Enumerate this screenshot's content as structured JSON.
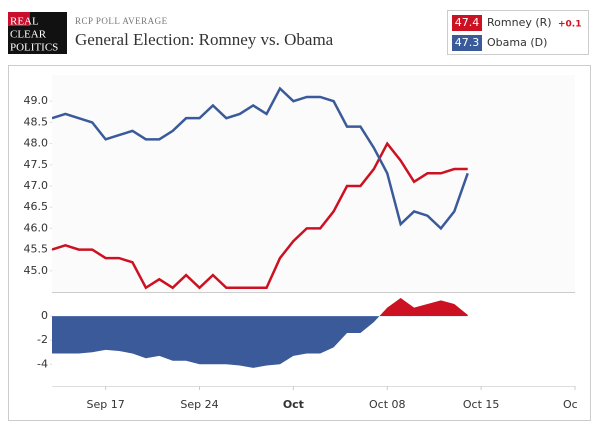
{
  "header": {
    "logo": [
      "REAL",
      "CLEAR",
      "POLITICS"
    ],
    "subtitle": "RCP POLL AVERAGE",
    "title": "General Election: Romney vs. Obama"
  },
  "chart_data": [
    {
      "type": "line",
      "x": [
        13,
        14,
        15,
        16,
        17,
        18,
        19,
        20,
        21,
        22,
        23,
        24,
        25,
        26,
        27,
        28,
        29,
        30,
        31,
        32,
        33,
        34,
        35,
        36,
        37,
        38,
        39,
        40,
        41,
        42,
        43,
        44
      ],
      "series": [
        {
          "name": "Romney (R)",
          "color": "#cc1122",
          "legend_value": "47.4",
          "change": "+0.1",
          "values": [
            45.5,
            45.6,
            45.5,
            45.5,
            45.3,
            45.3,
            45.2,
            44.6,
            44.8,
            44.6,
            44.9,
            44.6,
            44.9,
            44.6,
            44.6,
            44.6,
            44.6,
            45.3,
            45.7,
            46.0,
            46.0,
            46.4,
            47.0,
            47.0,
            47.4,
            48.0,
            47.6,
            47.1,
            47.3,
            47.3,
            47.4,
            47.4
          ]
        },
        {
          "name": "Obama (D)",
          "color": "#3a5a9a",
          "legend_value": "47.3",
          "values": [
            48.6,
            48.7,
            48.6,
            48.5,
            48.1,
            48.2,
            48.3,
            48.1,
            48.1,
            48.3,
            48.6,
            48.6,
            48.9,
            48.6,
            48.7,
            48.9,
            48.7,
            49.3,
            49.0,
            49.1,
            49.1,
            49.0,
            48.4,
            48.4,
            47.9,
            47.3,
            46.1,
            46.4,
            46.3,
            46.0,
            46.4,
            47.3
          ]
        }
      ],
      "xlim": [
        13,
        52
      ],
      "ylim": [
        44.5,
        49.5
      ],
      "yticks": [
        {
          "value": 45,
          "label": "45.0"
        },
        {
          "value": 45.5,
          "label": "45.5"
        },
        {
          "value": 46,
          "label": "46.0"
        },
        {
          "value": 46.5,
          "label": "46.5"
        },
        {
          "value": 47,
          "label": "47.0"
        },
        {
          "value": 47.5,
          "label": "47.5"
        },
        {
          "value": 48,
          "label": "48.0"
        },
        {
          "value": 48.5,
          "label": "48.5"
        },
        {
          "value": 49,
          "label": "49.0"
        }
      ]
    },
    {
      "type": "area",
      "x": [
        13,
        14,
        15,
        16,
        17,
        18,
        19,
        20,
        21,
        22,
        23,
        24,
        25,
        26,
        27,
        28,
        29,
        30,
        31,
        32,
        33,
        34,
        35,
        36,
        37,
        38,
        39,
        40,
        41,
        42,
        43,
        44
      ],
      "values": [
        -3.1,
        -3.1,
        -3.1,
        -3.0,
        -2.8,
        -2.9,
        -3.1,
        -3.5,
        -3.3,
        -3.7,
        -3.7,
        -4.0,
        -4.0,
        -4.0,
        -4.1,
        -4.3,
        -4.1,
        -4.0,
        -3.3,
        -3.1,
        -3.1,
        -2.6,
        -1.4,
        -1.4,
        -0.5,
        0.7,
        1.5,
        0.7,
        1.0,
        1.3,
        1.0,
        0.1
      ],
      "positive_color": "#cc1122",
      "negative_color": "#3a5a9a",
      "xlim": [
        13,
        52
      ],
      "ylim": [
        -5.8,
        2
      ],
      "yticks": [
        -4,
        -2,
        0
      ],
      "xticks": [
        {
          "value": 17,
          "label": "Sep 17"
        },
        {
          "value": 24,
          "label": "Sep 24"
        },
        {
          "value": 31,
          "label": "Oct"
        },
        {
          "value": 38,
          "label": "Oct 08"
        },
        {
          "value": 45,
          "label": "Oct 15"
        },
        {
          "value": 52,
          "label": "Oc"
        }
      ]
    }
  ]
}
